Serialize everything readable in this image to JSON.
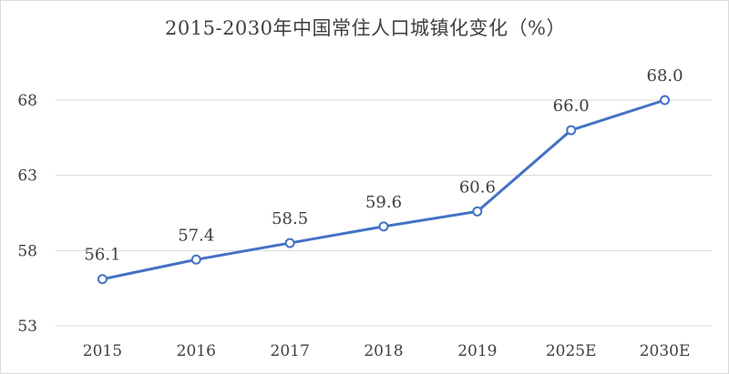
{
  "chart_data": {
    "type": "line",
    "title": "2015-2030年中国常住人口城镇化变化（%）",
    "categories": [
      "2015",
      "2016",
      "2017",
      "2018",
      "2019",
      "2025E",
      "2030E"
    ],
    "series": [
      {
        "values": [
          56.1,
          57.4,
          58.5,
          59.6,
          60.6,
          66.0,
          68.0
        ]
      }
    ],
    "data_labels": [
      "56.1",
      "57.4",
      "58.5",
      "59.6",
      "60.6",
      "66.0",
      "68.0"
    ],
    "y_ticks": [
      "53",
      "58",
      "63",
      "68"
    ],
    "ylim": [
      53,
      68
    ],
    "grid": true,
    "legend": "none",
    "colors": {
      "line": "#4472c4",
      "grid": "#d9d9d9",
      "text": "#404040"
    }
  }
}
